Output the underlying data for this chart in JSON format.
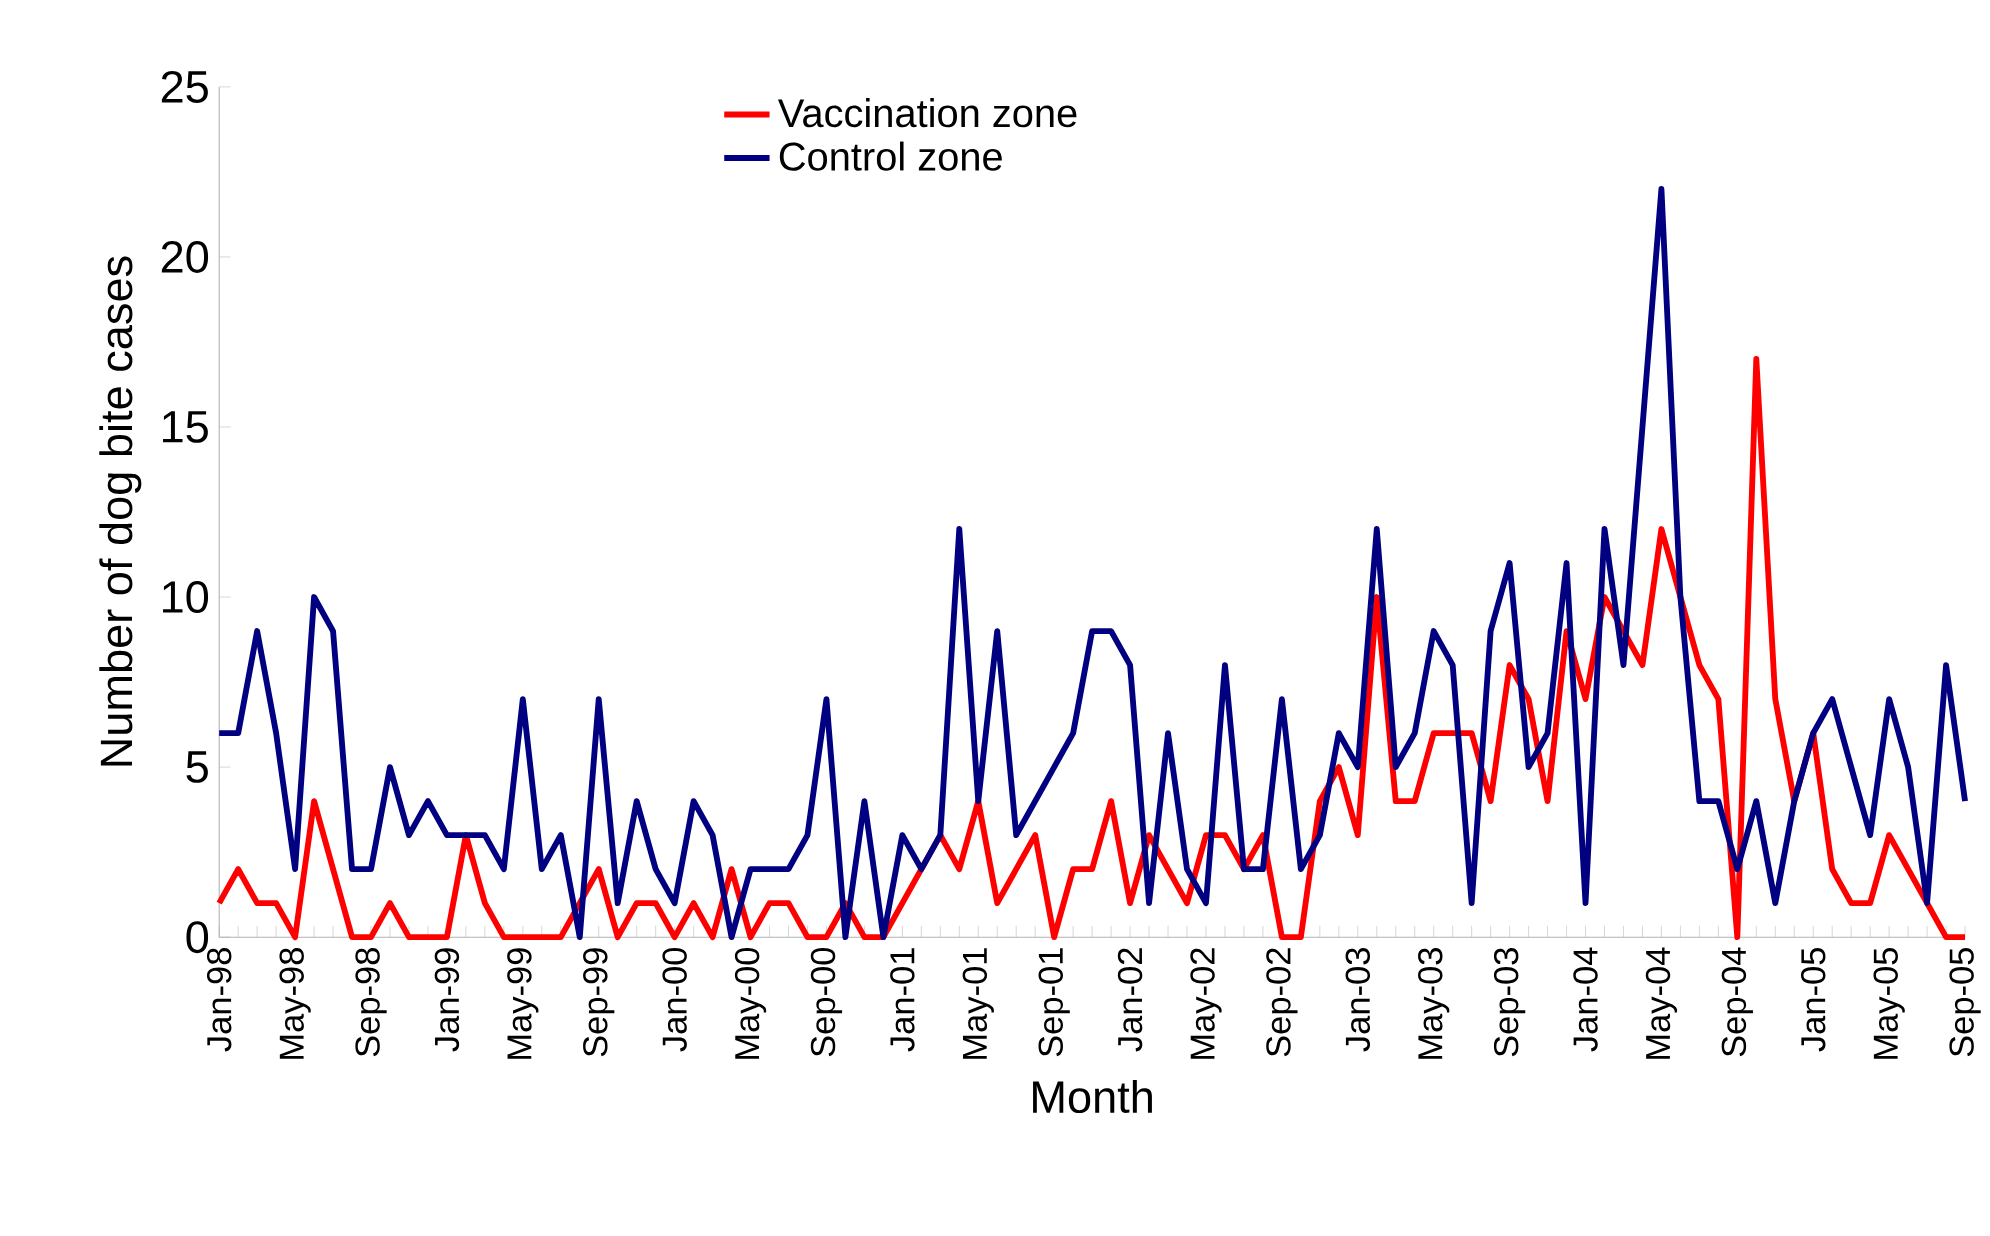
{
  "chart_data": {
    "type": "line",
    "xlabel": "Month",
    "ylabel": "Number of dog bite cases",
    "categories": [
      "Jan-98",
      null,
      null,
      null,
      "May-98",
      null,
      null,
      null,
      "Sep-98",
      null,
      null,
      null,
      "Jan-99",
      null,
      null,
      null,
      "May-99",
      null,
      null,
      null,
      "Sep-99",
      null,
      null,
      null,
      "Jan-00",
      null,
      null,
      null,
      "May-00",
      null,
      null,
      null,
      "Sep-00",
      null,
      null,
      null,
      "Jan-01",
      null,
      null,
      null,
      "May-01",
      null,
      null,
      null,
      "Sep-01",
      null,
      null,
      null,
      "Jan-02",
      null,
      null,
      null,
      "May-02",
      null,
      null,
      null,
      "Sep-02",
      null,
      null,
      null,
      "Jan-03",
      null,
      null,
      null,
      "May-03",
      null,
      null,
      null,
      "Sep-03",
      null,
      null,
      null,
      "Jan-04",
      null,
      null,
      null,
      "May-04",
      null,
      null,
      null,
      "Sep-04",
      null,
      null,
      null,
      "Jan-05",
      null,
      null,
      null,
      "May-05",
      null,
      null,
      null,
      "Sep-05"
    ],
    "series": [
      {
        "name": "Vaccination zone",
        "color": "#ff0000",
        "values": [
          1,
          2,
          1,
          1,
          0,
          4,
          2,
          0,
          0,
          1,
          0,
          0,
          0,
          3,
          1,
          0,
          0,
          0,
          0,
          1,
          2,
          0,
          1,
          1,
          0,
          1,
          0,
          2,
          0,
          1,
          1,
          0,
          0,
          1,
          0,
          0,
          1,
          2,
          3,
          2,
          4,
          1,
          2,
          3,
          0,
          2,
          2,
          4,
          1,
          3,
          2,
          1,
          3,
          3,
          2,
          3,
          0,
          0,
          4,
          5,
          3,
          10,
          4,
          4,
          6,
          6,
          6,
          4,
          8,
          7,
          4,
          9,
          7,
          10,
          9,
          8,
          12,
          10,
          8,
          7,
          0,
          17,
          7,
          4,
          6,
          2,
          1,
          1,
          3,
          2,
          1,
          0,
          0
        ]
      },
      {
        "name": "Control zone",
        "color": "#000080",
        "values": [
          6,
          6,
          9,
          6,
          2,
          10,
          9,
          2,
          2,
          5,
          3,
          4,
          3,
          3,
          3,
          2,
          7,
          2,
          3,
          0,
          7,
          1,
          4,
          2,
          1,
          4,
          3,
          0,
          2,
          2,
          2,
          3,
          7,
          0,
          4,
          0,
          3,
          2,
          3,
          12,
          4,
          9,
          3,
          4,
          5,
          6,
          9,
          9,
          8,
          1,
          6,
          2,
          1,
          8,
          2,
          2,
          7,
          2,
          3,
          6,
          5,
          12,
          5,
          6,
          9,
          8,
          1,
          9,
          11,
          5,
          6,
          11,
          1,
          12,
          8,
          15,
          22,
          10,
          4,
          4,
          2,
          4,
          1,
          4,
          6,
          7,
          5,
          3,
          7,
          5,
          1,
          8,
          4
        ]
      }
    ],
    "ylim": [
      0,
      25
    ],
    "yticks": [
      0,
      5,
      10,
      15,
      20,
      25
    ],
    "grid": false,
    "legend": "top",
    "marker": "none",
    "line_style": "solid"
  }
}
